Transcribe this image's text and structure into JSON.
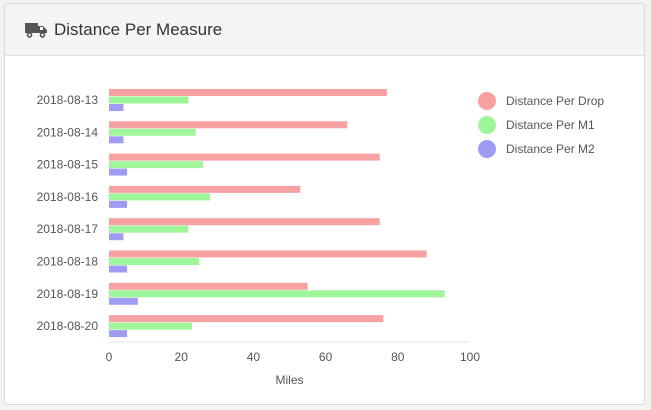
{
  "panel": {
    "title": "Distance Per Measure",
    "icon": "truck-icon"
  },
  "chart_data": {
    "type": "bar",
    "orientation": "horizontal",
    "categories": [
      "2018-08-13",
      "2018-08-14",
      "2018-08-15",
      "2018-08-16",
      "2018-08-17",
      "2018-08-18",
      "2018-08-19",
      "2018-08-20"
    ],
    "series": [
      {
        "name": "Distance Per Drop",
        "color": "#f7a1a3",
        "values": [
          77,
          66,
          75,
          53,
          75,
          88,
          55,
          76
        ]
      },
      {
        "name": "Distance Per M1",
        "color": "#9ef59a",
        "values": [
          22,
          24,
          26,
          28,
          22,
          25,
          93,
          23
        ]
      },
      {
        "name": "Distance Per M2",
        "color": "#9f9cf4",
        "values": [
          4,
          4,
          5,
          5,
          4,
          5,
          8,
          5
        ]
      }
    ],
    "title": "Distance Per Measure",
    "xlabel": "Miles",
    "ylabel": "",
    "xlim": [
      0,
      100
    ],
    "xticks": [
      0,
      20,
      40,
      60,
      80,
      100
    ],
    "grid": false,
    "legend_position": "right"
  }
}
